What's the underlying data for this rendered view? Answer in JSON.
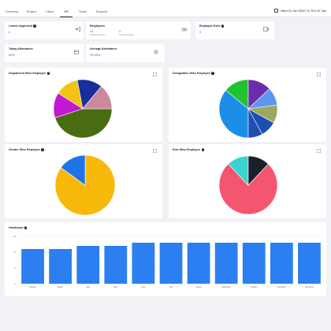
{
  "tabs": [
    "Overview",
    "Project",
    "Client",
    "HR",
    "Ticket",
    "Finance"
  ],
  "active_tab": "HR",
  "date_range": "Wed 01 Jan 2020 To Thu 02 Jan",
  "stats": {
    "leaves_approved": {
      "title": "Leaves Approved",
      "value": "0"
    },
    "employees": {
      "title": "Employees",
      "total": "13",
      "total_label": "Total Employees",
      "new": "0",
      "new_label": "New Employees"
    },
    "employee_exits": {
      "title": "Employee Exits",
      "value": "0"
    },
    "today_attendance": {
      "title": "Today Attendance",
      "value": "0/13"
    },
    "avg_attendance": {
      "title": "Average Attendance",
      "value": "20.00%"
    }
  },
  "chart_titles": {
    "department": "Department Wise Employee",
    "designation": "Designation Wise Employee",
    "gender": "Gender Wise Employee",
    "role": "Role Wise Employee",
    "headcount": "Headcount"
  },
  "colors": {
    "bar": "#2b7ff0",
    "accent": "#1d63d6",
    "green": "#5b9b1c"
  },
  "chart_data": [
    {
      "type": "pie",
      "name": "department",
      "values": [
        45,
        14,
        13,
        14,
        14
      ],
      "colors": [
        "#4a6c10",
        "#c218d4",
        "#f1c40f",
        "#1a2d9c",
        "#c98a9e"
      ]
    },
    {
      "type": "pie",
      "name": "designation",
      "values": [
        36,
        14,
        13,
        10,
        10,
        9,
        8
      ],
      "colors": [
        "#1b8fe8",
        "#22c12e",
        "#6c2dab",
        "#5e96ee",
        "#9ba95e",
        "#1d4fb2",
        "#1d4fb2"
      ]
    },
    {
      "type": "pie",
      "name": "gender",
      "values": [
        85,
        15
      ],
      "colors": [
        "#f9b90b",
        "#1e73e8"
      ]
    },
    {
      "type": "pie",
      "name": "role",
      "values": [
        76,
        12,
        12
      ],
      "colors": [
        "#f4566f",
        "#3bd3cf",
        "#1b1f2a"
      ]
    },
    {
      "type": "bar",
      "name": "headcount",
      "categories": [
        "February",
        "March",
        "April",
        "May",
        "June",
        "July",
        "August",
        "September",
        "October",
        "November",
        "December"
      ],
      "values": [
        11,
        11,
        12,
        12,
        13,
        13,
        13,
        13,
        13,
        13,
        13
      ],
      "yticks": [
        "0",
        "5",
        "10",
        "15"
      ],
      "ylim": [
        0,
        15
      ]
    }
  ]
}
